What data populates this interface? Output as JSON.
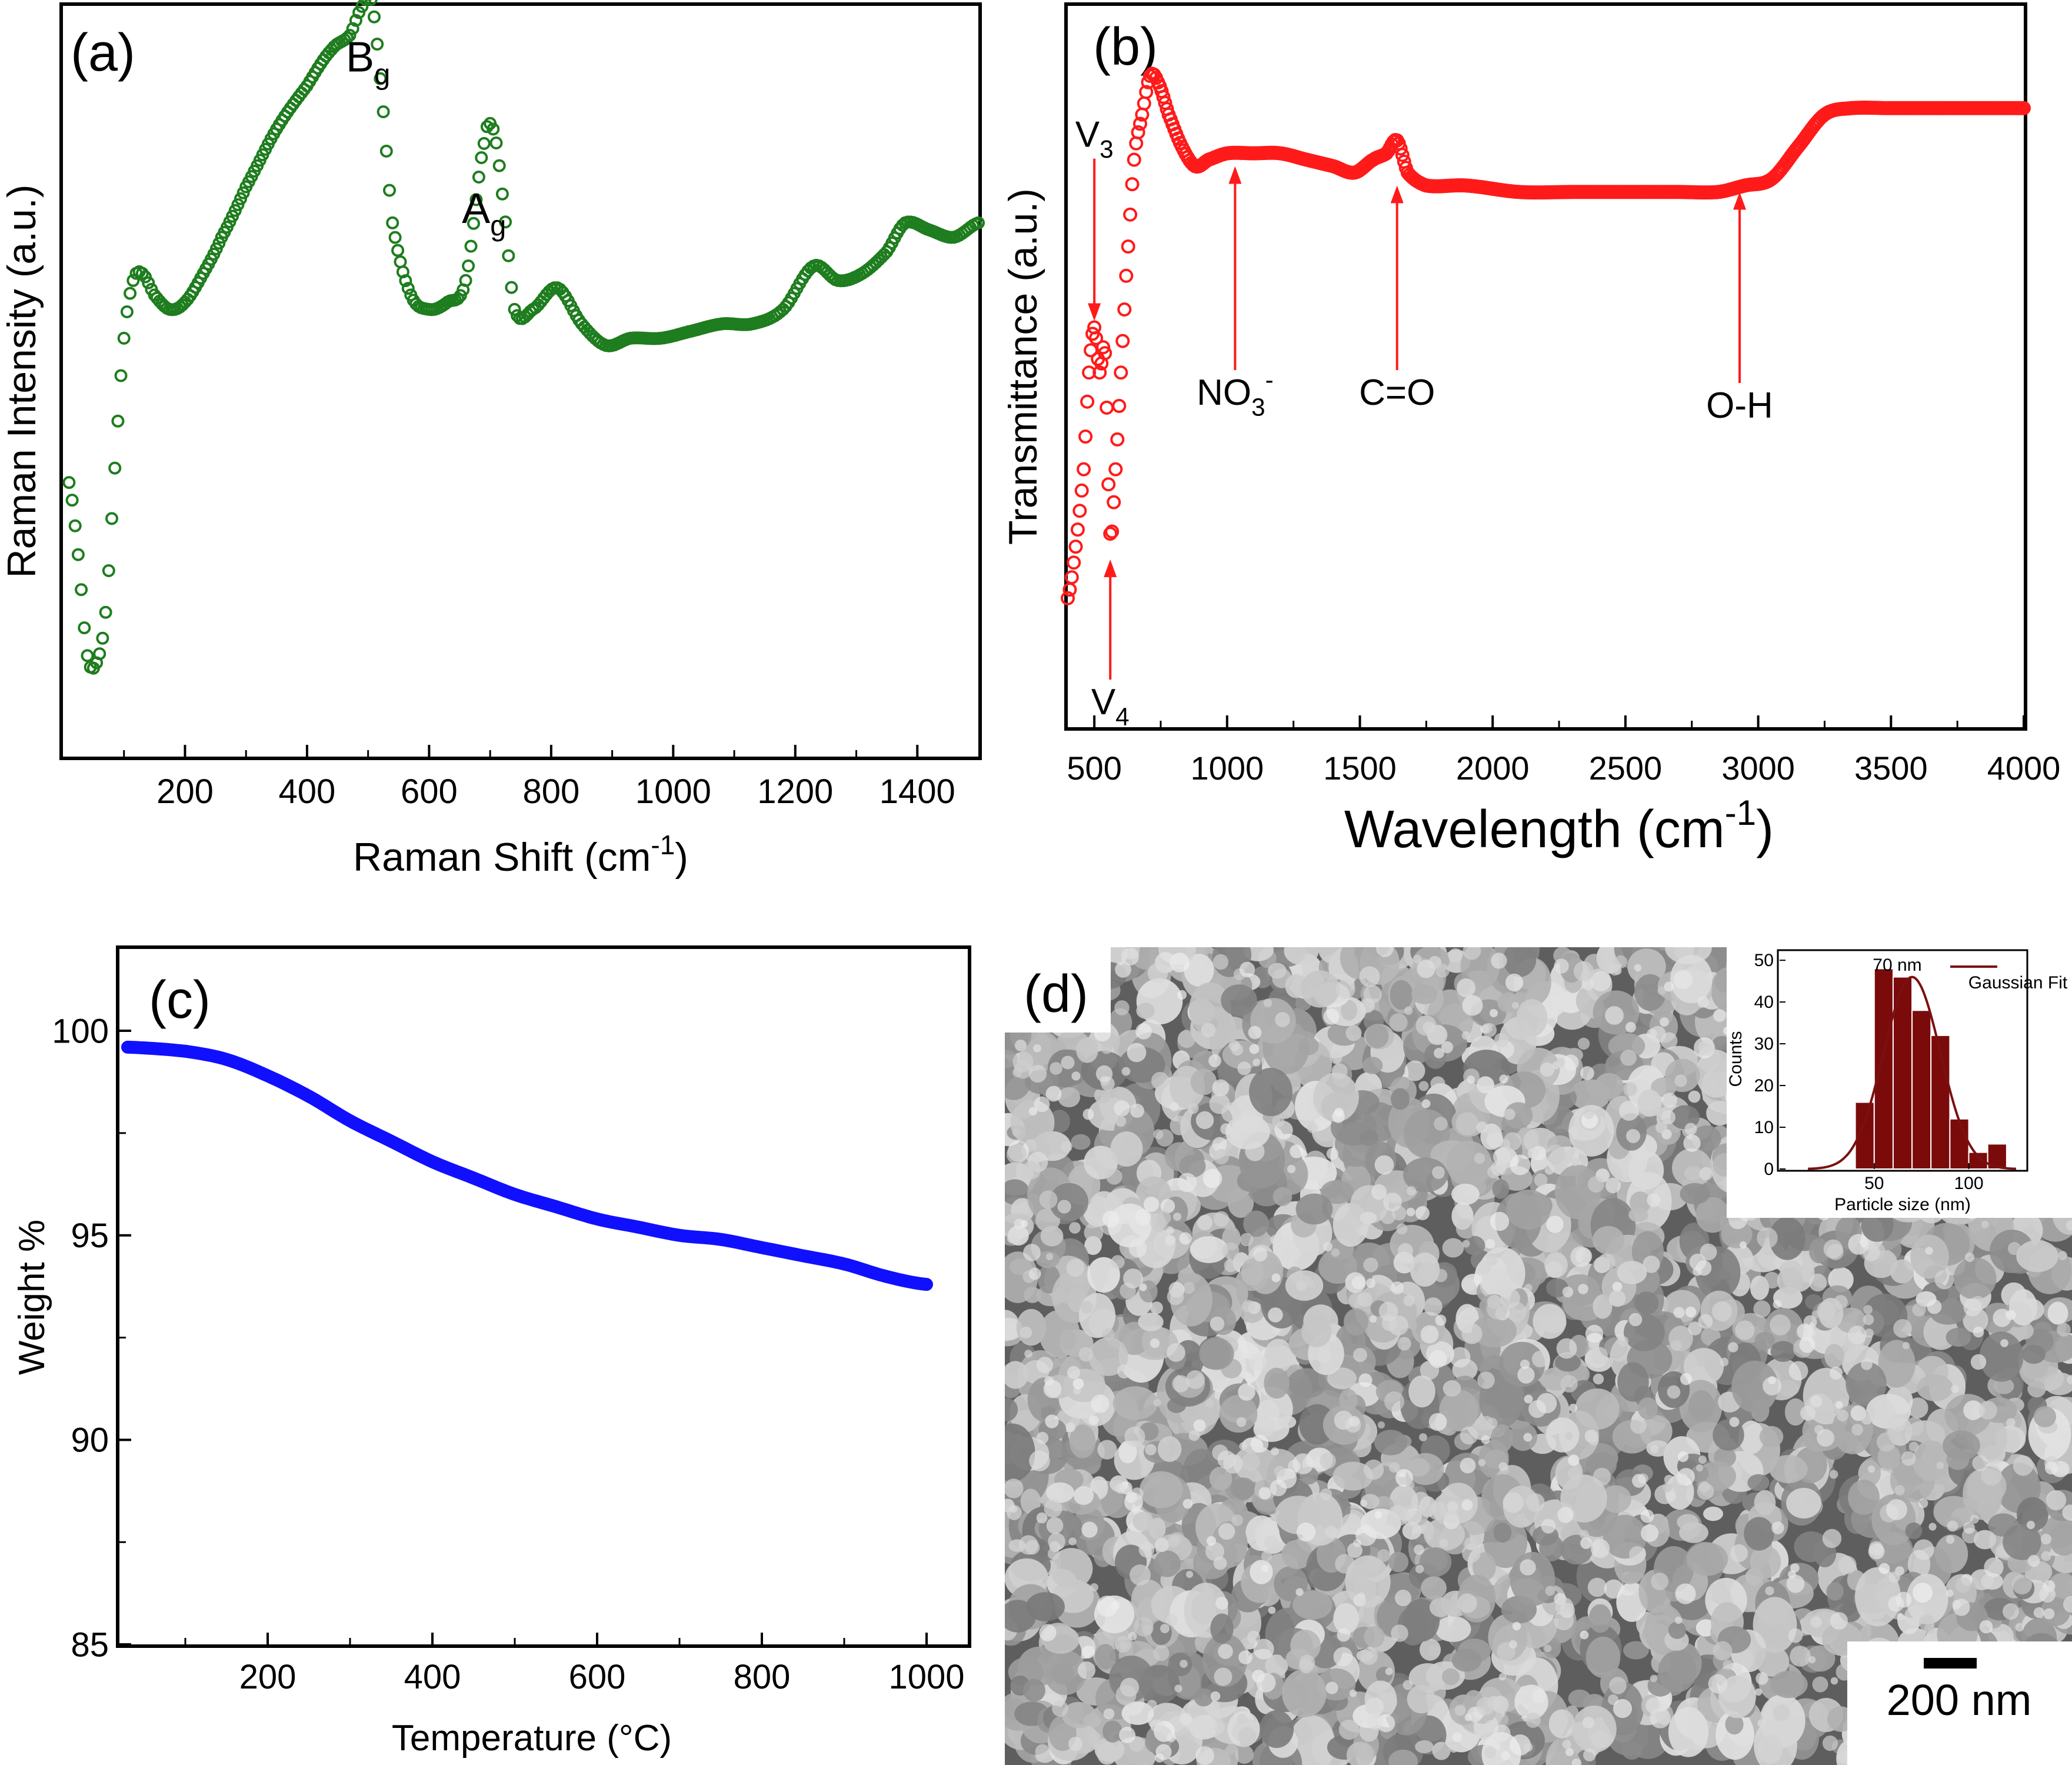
{
  "figure_title": "",
  "colors": {
    "panel_a": "#1e7d1e",
    "panel_b": "#ff1a1a",
    "panel_c": "#1010ff",
    "panel_d_hist": "#7b0b0b",
    "panel_d_fit": "#7a1010"
  },
  "panels": {
    "a": {
      "label": "(a)"
    },
    "b": {
      "label": "(b)"
    },
    "c": {
      "label": "(c)"
    },
    "d": {
      "label": "(d)",
      "scale_bar": "200 nm",
      "image_kind": "SEM micrograph of nanoparticles"
    }
  },
  "chart_data": [
    {
      "id": "a",
      "type": "scatter",
      "marker": "open-circle",
      "title": "",
      "xlabel": "Raman Shift (cm",
      "xlabel_sup": "-1",
      "xlabel_end": ")",
      "ylabel": "Raman Intensity (a.u.)",
      "xlim": [
        0,
        1500
      ],
      "ylim": [
        0,
        100
      ],
      "xticks": [
        200,
        400,
        600,
        800,
        1000,
        1200,
        1400
      ],
      "yticks": [],
      "annotations": [
        {
          "text": "B",
          "sub": "g",
          "x": 500,
          "y": 95
        },
        {
          "text": "A",
          "sub": "g",
          "x": 690,
          "y": 74
        }
      ],
      "x": [
        10,
        25,
        40,
        55,
        70,
        85,
        100,
        115,
        130,
        150,
        175,
        200,
        230,
        260,
        300,
        350,
        400,
        440,
        470,
        490,
        505,
        520,
        540,
        570,
        600,
        630,
        660,
        690,
        705,
        720,
        740,
        770,
        810,
        850,
        890,
        930,
        980,
        1030,
        1080,
        1130,
        1180,
        1230,
        1270,
        1310,
        1350,
        1380,
        1420,
        1460,
        1500
      ],
      "y": [
        38,
        28,
        14,
        13,
        20,
        40,
        58,
        66,
        67,
        64,
        62,
        63,
        67,
        72,
        79,
        87,
        93,
        98,
        100,
        104,
        105,
        94,
        74,
        64,
        62,
        63,
        66,
        85,
        87,
        78,
        62,
        62,
        65,
        60,
        57,
        58,
        58,
        59,
        60,
        60,
        62,
        68,
        66,
        67,
        70,
        74,
        73,
        72,
        74
      ]
    },
    {
      "id": "b",
      "type": "scatter",
      "marker": "open-circle",
      "title": "",
      "xlabel": "Wavelength (cm",
      "xlabel_sup": "-1",
      "xlabel_end": ")",
      "ylabel": "Transmittance (a.u.)",
      "xlim": [
        400,
        4000
      ],
      "ylim": [
        0,
        100
      ],
      "xticks": [
        500,
        1000,
        1500,
        2000,
        2500,
        3000,
        3500,
        4000
      ],
      "yticks": [],
      "annotations": [
        {
          "text": "V",
          "sub": "3",
          "x": 500,
          "y": 90,
          "arrow_to_y": 63
        },
        {
          "text": "V",
          "sub": "4",
          "x": 560,
          "y": 2,
          "arrow_to_y": 26
        },
        {
          "text": "NO",
          "sub": "3",
          "sup": "-",
          "x": 1030,
          "y": 50,
          "arrow_to_y": 87
        },
        {
          "text": "C=O",
          "x": 1640,
          "y": 50,
          "arrow_to_y": 84
        },
        {
          "text": "O-H",
          "x": 2930,
          "y": 48,
          "arrow_to_y": 83
        }
      ],
      "x": [
        400,
        430,
        460,
        480,
        500,
        520,
        540,
        560,
        580,
        600,
        620,
        650,
        680,
        710,
        740,
        780,
        830,
        880,
        930,
        1000,
        1100,
        1200,
        1300,
        1400,
        1480,
        1550,
        1600,
        1640,
        1680,
        1750,
        1900,
        2100,
        2300,
        2500,
        2700,
        2850,
        2950,
        3050,
        3150,
        3250,
        3350,
        3500,
        3700,
        4000
      ],
      "y": [
        20,
        28,
        40,
        55,
        62,
        55,
        58,
        30,
        40,
        55,
        70,
        88,
        95,
        101,
        100,
        95,
        90,
        87,
        88,
        89,
        89,
        89,
        88,
        87,
        86,
        88,
        89,
        91,
        86,
        84,
        84,
        83,
        83,
        83,
        83,
        83,
        84,
        85,
        90,
        95,
        96,
        96,
        96,
        96
      ]
    },
    {
      "id": "c",
      "type": "line",
      "title": "",
      "xlabel": "Temperature (°C)",
      "ylabel": "Weight %",
      "xlim": [
        20,
        1050
      ],
      "ylim": [
        85,
        102
      ],
      "xticks": [
        200,
        400,
        600,
        800,
        1000
      ],
      "yticks": [
        85,
        90,
        95,
        100
      ],
      "x": [
        30,
        100,
        150,
        200,
        250,
        300,
        350,
        400,
        450,
        500,
        550,
        600,
        650,
        700,
        750,
        800,
        850,
        900,
        950,
        1000
      ],
      "y": [
        99.6,
        99.5,
        99.3,
        98.9,
        98.4,
        97.8,
        97.3,
        96.8,
        96.4,
        96.0,
        95.7,
        95.4,
        95.2,
        95.0,
        94.9,
        94.7,
        94.5,
        94.3,
        94.0,
        93.8
      ]
    },
    {
      "id": "d-inset",
      "type": "bar",
      "title": "70 nm",
      "xlabel": "Particle size (nm)",
      "ylabel": "Counts",
      "legend": [
        "Gaussian Fit"
      ],
      "legend_position": "top-right",
      "xlim": [
        0,
        130
      ],
      "ylim": [
        0,
        52
      ],
      "xticks": [
        50,
        100
      ],
      "yticks": [
        0,
        10,
        20,
        30,
        40,
        50
      ],
      "bin_width": 10,
      "bin_centers": [
        45,
        55,
        65,
        75,
        85,
        95,
        105,
        115
      ],
      "values": [
        16,
        48,
        46,
        38,
        32,
        12,
        4,
        6
      ],
      "fit": {
        "type": "gaussian",
        "center": 70,
        "amplitude": 46,
        "sigma": 15
      }
    }
  ]
}
